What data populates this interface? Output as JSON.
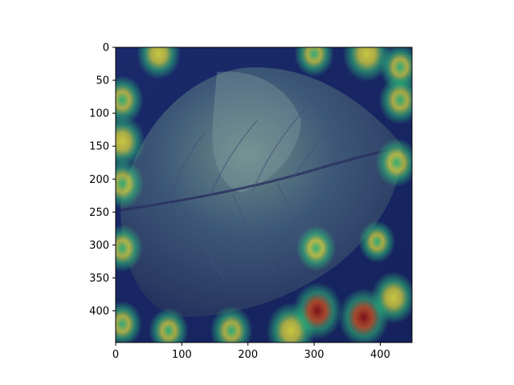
{
  "chart_data": {
    "type": "heatmap",
    "title": "",
    "xlabel": "",
    "ylabel": "",
    "xlim": [
      0,
      448
    ],
    "ylim": [
      448,
      0
    ],
    "x_ticks": [
      0,
      100,
      200,
      300,
      400
    ],
    "y_ticks": [
      0,
      50,
      100,
      150,
      200,
      250,
      300,
      350,
      400
    ],
    "colormap": "jet",
    "background": "#ffffff",
    "image_content": "leaf photo with heatmap overlay",
    "colors": {
      "low": "#0b1a6b",
      "mid": "#2fbf7a",
      "high_yellow": "#e8e23a",
      "peak": "#8b0d0d"
    },
    "hotspots": [
      {
        "x": 65,
        "y": 10,
        "level": 0.75
      },
      {
        "x": 10,
        "y": 80,
        "level": 0.7
      },
      {
        "x": 10,
        "y": 143,
        "level": 0.8
      },
      {
        "x": 10,
        "y": 207,
        "level": 0.72
      },
      {
        "x": 10,
        "y": 305,
        "level": 0.65
      },
      {
        "x": 303,
        "y": 305,
        "level": 0.6
      },
      {
        "x": 425,
        "y": 175,
        "level": 0.7
      },
      {
        "x": 300,
        "y": 10,
        "level": 0.6
      },
      {
        "x": 380,
        "y": 10,
        "level": 0.9
      },
      {
        "x": 430,
        "y": 30,
        "level": 0.65
      },
      {
        "x": 430,
        "y": 80,
        "level": 0.7
      },
      {
        "x": 265,
        "y": 430,
        "level": 0.92
      },
      {
        "x": 305,
        "y": 400,
        "level": 0.95
      },
      {
        "x": 375,
        "y": 410,
        "level": 1.0
      },
      {
        "x": 420,
        "y": 380,
        "level": 0.8
      },
      {
        "x": 175,
        "y": 430,
        "level": 0.7
      },
      {
        "x": 10,
        "y": 420,
        "level": 0.6
      },
      {
        "x": 80,
        "y": 430,
        "level": 0.6
      },
      {
        "x": 395,
        "y": 295,
        "level": 0.5
      }
    ]
  }
}
